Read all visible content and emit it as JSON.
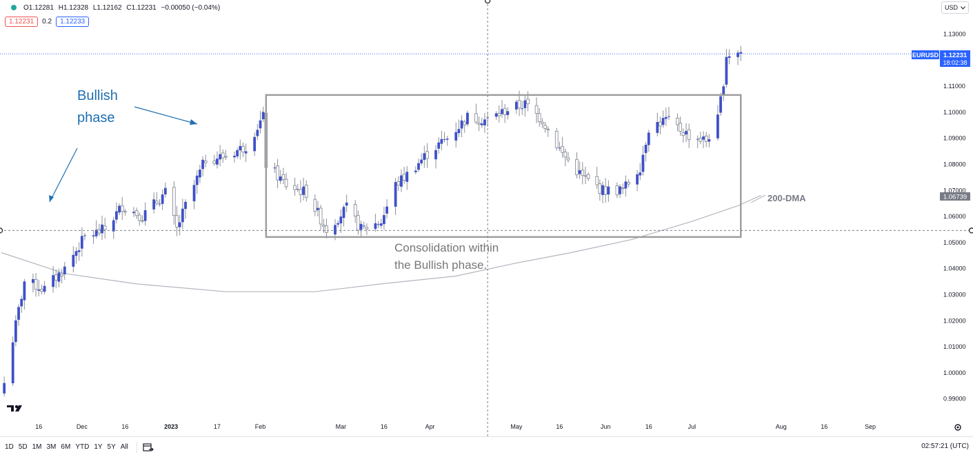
{
  "header": {
    "ohlc": {
      "open": "O1.12281",
      "high": "H1.12328",
      "low": "L1.12162",
      "close": "C1.12231",
      "change": "−0.00050 (−0.04%)"
    },
    "bid": "1.12231",
    "spread": "0.2",
    "ask": "1.12233",
    "currency": "USD",
    "currency_icon": "chevron-down-icon",
    "status_color": "#26a69a"
  },
  "chart_data": {
    "type": "candlestick",
    "symbol": "EURUSD",
    "last_price": "1.12231",
    "countdown": "18:02:38",
    "dma_label": "200-DMA",
    "dma_value": "1.06739",
    "ylim": [
      0.985,
      1.135
    ],
    "y_ticks": [
      "1.13000",
      "1.11000",
      "1.10000",
      "1.09000",
      "1.08000",
      "1.07000",
      "1.06000",
      "1.05000",
      "1.04000",
      "1.03000",
      "1.02000",
      "1.01000",
      "1.00000",
      "0.99000"
    ],
    "x_ticks": [
      {
        "label": "16",
        "x": "2022-11-16"
      },
      {
        "label": "Dec",
        "x": "2022-12-01"
      },
      {
        "label": "16",
        "x": "2022-12-16"
      },
      {
        "label": "2023",
        "x": "2023-01-01"
      },
      {
        "label": "17",
        "x": "2023-01-17"
      },
      {
        "label": "Feb",
        "x": "2023-02-01"
      },
      {
        "label": "Mar",
        "x": "2023-03-01"
      },
      {
        "label": "16",
        "x": "2023-03-16"
      },
      {
        "label": "Apr",
        "x": "2023-04-01"
      },
      {
        "label": "May",
        "x": "2023-05-01"
      },
      {
        "label": "16",
        "x": "2023-05-16"
      },
      {
        "label": "Jun",
        "x": "2023-06-01"
      },
      {
        "label": "16",
        "x": "2023-06-16"
      },
      {
        "label": "Jul",
        "x": "2023-07-01"
      },
      {
        "label": "Aug",
        "x": "2023-08-01"
      },
      {
        "label": "16",
        "x": "2023-08-16"
      },
      {
        "label": "Sep",
        "x": "2023-09-01"
      }
    ],
    "x_start": "2022-11-03",
    "x_end": "2023-09-24",
    "colors": {
      "up": "#3f51c8",
      "down": "#ffffff",
      "dma": "#b2b5be",
      "box": "#999999",
      "annotation": "#1f6fb0"
    },
    "waypoints": [
      [
        "2022-11-04",
        0.996
      ],
      [
        "2022-11-11",
        1.035
      ],
      [
        "2022-11-18",
        1.032
      ],
      [
        "2022-11-25",
        1.04
      ],
      [
        "2022-12-02",
        1.052
      ],
      [
        "2022-12-09",
        1.055
      ],
      [
        "2022-12-15",
        1.064
      ],
      [
        "2022-12-22",
        1.06
      ],
      [
        "2022-12-30",
        1.069
      ],
      [
        "2023-01-03",
        1.055
      ],
      [
        "2023-01-06",
        1.064
      ],
      [
        "2023-01-13",
        1.082
      ],
      [
        "2023-01-20",
        1.083
      ],
      [
        "2023-01-27",
        1.087
      ],
      [
        "2023-02-02",
        1.098
      ],
      [
        "2023-02-03",
        1.08
      ],
      [
        "2023-02-10",
        1.072
      ],
      [
        "2023-02-17",
        1.069
      ],
      [
        "2023-02-24",
        1.055
      ],
      [
        "2023-03-03",
        1.063
      ],
      [
        "2023-03-08",
        1.055
      ],
      [
        "2023-03-15",
        1.058
      ],
      [
        "2023-03-20",
        1.072
      ],
      [
        "2023-03-24",
        1.076
      ],
      [
        "2023-03-31",
        1.084
      ],
      [
        "2023-04-07",
        1.09
      ],
      [
        "2023-04-14",
        1.098
      ],
      [
        "2023-04-21",
        1.097
      ],
      [
        "2023-04-28",
        1.101
      ],
      [
        "2023-05-04",
        1.103
      ],
      [
        "2023-05-10",
        1.097
      ],
      [
        "2023-05-17",
        1.084
      ],
      [
        "2023-05-24",
        1.075
      ],
      [
        "2023-05-31",
        1.07
      ],
      [
        "2023-06-07",
        1.07
      ],
      [
        "2023-06-13",
        1.079
      ],
      [
        "2023-06-16",
        1.094
      ],
      [
        "2023-06-22",
        1.097
      ],
      [
        "2023-06-30",
        1.091
      ],
      [
        "2023-07-06",
        1.089
      ],
      [
        "2023-07-10",
        1.097
      ],
      [
        "2023-07-12",
        1.112
      ],
      [
        "2023-07-13",
        1.122
      ],
      [
        "2023-07-18",
        1.123
      ]
    ],
    "dma": [
      [
        "2022-11-03",
        1.046
      ],
      [
        "2022-11-25",
        1.038
      ],
      [
        "2022-12-20",
        1.034
      ],
      [
        "2023-01-20",
        1.031
      ],
      [
        "2023-02-20",
        1.031
      ],
      [
        "2023-03-15",
        1.034
      ],
      [
        "2023-04-10",
        1.037
      ],
      [
        "2023-05-01",
        1.042
      ],
      [
        "2023-05-20",
        1.046
      ],
      [
        "2023-06-10",
        1.051
      ],
      [
        "2023-07-01",
        1.058
      ],
      [
        "2023-07-17",
        1.064
      ],
      [
        "2023-07-25",
        1.068
      ]
    ],
    "consolidation_box": {
      "x0": "2023-02-03",
      "x1": "2023-07-18",
      "y0": 1.052,
      "y1": 1.1065
    },
    "annotations": {
      "bullish": [
        "Bullish",
        "phase"
      ],
      "consolidation": [
        "Consolidation within",
        "the Bullish phase."
      ]
    },
    "crosshair": {
      "x": "2023-04-21",
      "y": 1.0545
    }
  },
  "footer": {
    "ranges": [
      "1D",
      "5D",
      "1M",
      "3M",
      "6M",
      "YTD",
      "1Y",
      "5Y",
      "All"
    ],
    "compare_icon": "calendar-range-icon",
    "settings_icon": "gear-icon",
    "logo_icon": "tradingview-logo-icon",
    "clock": "02:57:21 (UTC)"
  }
}
